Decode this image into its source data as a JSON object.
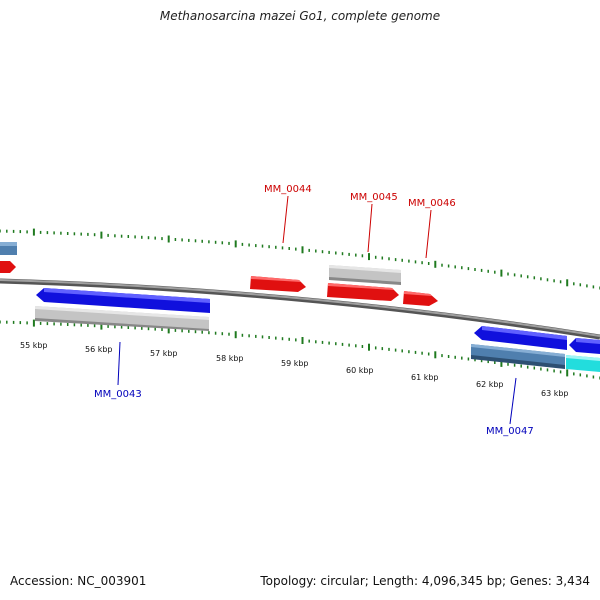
{
  "title": "Methanosarcina mazei Go1, complete genome",
  "footer": {
    "accession": "Accession: NC_003901",
    "summary": "Topology: circular; Length: 4,096,345 bp; Genes: 3,434"
  },
  "colors": {
    "backbone": "#8a8a8a",
    "tick": "#1f7a1f",
    "forward_cds": "#e01010",
    "reverse_cds": "#1010dd",
    "gene_grey": "#c4c4c4",
    "gene_steel": "#4f7fae",
    "gene_cyan": "#22dddd",
    "label_forward": "#cc0000",
    "label_reverse": "#0000bb"
  },
  "scale_labels": [
    "55 kbp",
    "56 kbp",
    "57 kbp",
    "58 kbp",
    "59 kbp",
    "60 kbp",
    "61 kbp",
    "62 kbp",
    "63 kbp"
  ],
  "gene_labels": [
    {
      "name": "MM_0043",
      "strand": "reverse"
    },
    {
      "name": "MM_0044",
      "strand": "forward"
    },
    {
      "name": "MM_0045",
      "strand": "forward"
    },
    {
      "name": "MM_0046",
      "strand": "forward"
    },
    {
      "name": "MM_0047",
      "strand": "reverse"
    }
  ]
}
